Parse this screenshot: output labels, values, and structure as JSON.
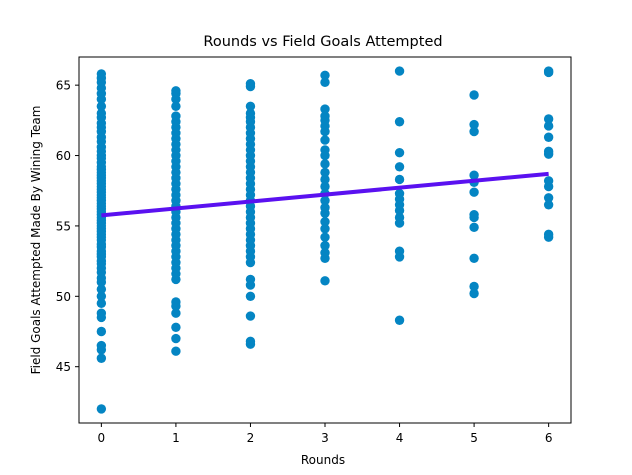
{
  "chart_data": {
    "type": "scatter",
    "title": "Rounds vs Field Goals Attempted",
    "xlabel": "Rounds",
    "ylabel": "Field Goals Attempted Made By Wining Team",
    "xlim": [
      -0.3,
      6.3
    ],
    "ylim": [
      41,
      67
    ],
    "xticks": [
      0,
      1,
      2,
      3,
      4,
      5,
      6
    ],
    "yticks": [
      45,
      50,
      55,
      60,
      65
    ],
    "grid": false,
    "colors": {
      "points": "#0485c3",
      "line": "#5a11f0"
    },
    "series": [
      {
        "type": "scatter",
        "points": [
          {
            "x": 0,
            "values": [
              42,
              45.6,
              46.2,
              46.5,
              47.5,
              48.5,
              48.8,
              49.5,
              50,
              50.5,
              51,
              51.3,
              51.7,
              52,
              52.3,
              52.5,
              52.8,
              53,
              53.2,
              53.5,
              53.7,
              54,
              54.2,
              54.4,
              54.6,
              54.8,
              55,
              55.2,
              55.4,
              55.6,
              55.8,
              56,
              56.2,
              56.4,
              56.6,
              56.8,
              57,
              57.2,
              57.4,
              57.6,
              57.8,
              58,
              58.2,
              58.4,
              58.6,
              58.8,
              59,
              59.2,
              59.5,
              59.8,
              60,
              60.3,
              60.6,
              61,
              61.3,
              61.7,
              62,
              62.3,
              62.7,
              63,
              63.5,
              64,
              64.4,
              64.8,
              65.2,
              65.5,
              65.8
            ]
          },
          {
            "x": 1,
            "values": [
              46.1,
              47,
              47.8,
              48.8,
              49.3,
              49.6,
              51.2,
              51.6,
              52,
              52.4,
              52.8,
              53.2,
              53.6,
              54,
              54.4,
              54.8,
              55.2,
              55.6,
              56,
              56.4,
              56.8,
              57.2,
              57.6,
              58,
              58.4,
              58.8,
              59.2,
              59.6,
              60,
              60.4,
              60.8,
              61.2,
              61.6,
              62,
              62.4,
              62.8,
              63.5,
              64,
              64.4,
              64.6
            ]
          },
          {
            "x": 2,
            "values": [
              46.6,
              46.8,
              48.6,
              50,
              50.8,
              51.2,
              52.4,
              52.8,
              53.2,
              53.6,
              54,
              54.4,
              54.8,
              55.2,
              55.6,
              56,
              56.4,
              56.8,
              57.2,
              57.6,
              58,
              58.4,
              58.8,
              59.2,
              59.6,
              60,
              60.4,
              60.8,
              61.2,
              61.6,
              62,
              62.4,
              62.7,
              63,
              63.5,
              64.9,
              65.1
            ]
          },
          {
            "x": 3,
            "values": [
              51.1,
              52.7,
              53.1,
              53.6,
              54.2,
              54.8,
              55.3,
              55.9,
              56.3,
              56.8,
              57.3,
              57.8,
              58.3,
              58.8,
              59.4,
              60,
              60.4,
              61.1,
              61.7,
              62.1,
              62.5,
              62.8,
              63.3,
              65.2,
              65.7
            ]
          },
          {
            "x": 4,
            "values": [
              48.3,
              52.8,
              53.2,
              55.2,
              55.6,
              56.1,
              56.5,
              56.9,
              57.3,
              58.3,
              59.2,
              60.2,
              62.4,
              66
            ]
          },
          {
            "x": 5,
            "values": [
              50.2,
              50.7,
              52.7,
              54.9,
              55.6,
              55.8,
              57.4,
              58.1,
              58.6,
              61.7,
              62.2,
              64.3
            ]
          },
          {
            "x": 6,
            "values": [
              54.2,
              54.4,
              56.5,
              57,
              57.8,
              58.2,
              60.1,
              60.3,
              61.3,
              62.1,
              62.6,
              65.9,
              66
            ]
          }
        ]
      },
      {
        "type": "line",
        "x": [
          0,
          6
        ],
        "y": [
          55.75,
          58.7
        ]
      }
    ]
  }
}
